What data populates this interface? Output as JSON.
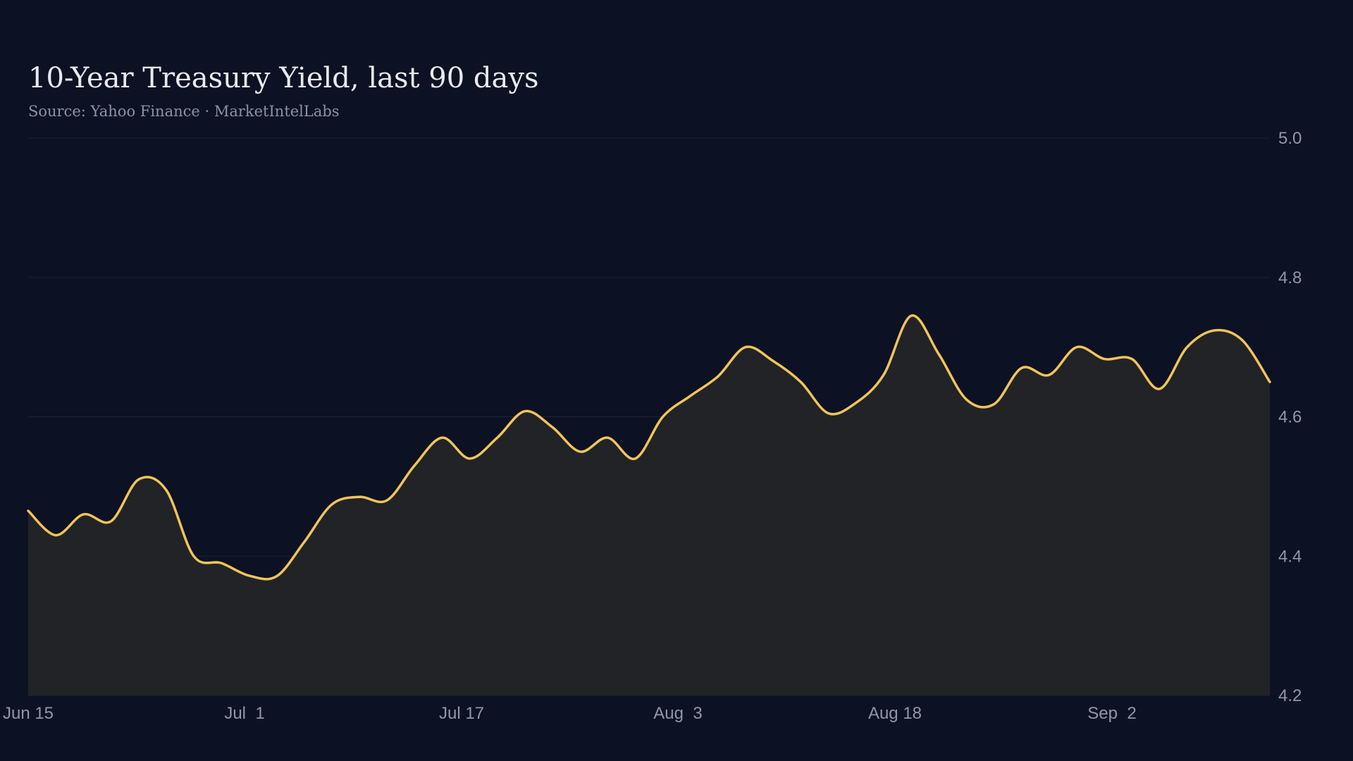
{
  "chart_data": {
    "type": "area",
    "title": "10-Year Treasury Yield, last 90 days",
    "subtitle": "Source: Yahoo Finance · MarketIntelLabs",
    "xlabel": "",
    "ylabel": "",
    "ylim": [
      4.2,
      5.0
    ],
    "yticks": [
      "4.2",
      "4.4",
      "4.6",
      "4.8",
      "5.0"
    ],
    "xticks": [
      "Jun 15",
      "Jul  1",
      "Jul 17",
      "Aug  3",
      "Aug 18",
      "Sep  2"
    ],
    "y_axis_side": "right",
    "grid": "horizontal",
    "legend": "none",
    "colors": {
      "background": "#0c1223",
      "line": "#f2c45a",
      "area": "#212327",
      "grid": "#1c2333",
      "text": "#8f97a8",
      "title": "#e8eaf0"
    },
    "x": [
      "Jun 15",
      "Jun 17",
      "Jun 19",
      "Jun 21",
      "Jun 23",
      "Jun 25",
      "Jun 27",
      "Jun 29",
      "Jul 1",
      "Jul 3",
      "Jul 5",
      "Jul 7",
      "Jul 9",
      "Jul 11",
      "Jul 13",
      "Jul 15",
      "Jul 17",
      "Jul 19",
      "Jul 21",
      "Jul 23",
      "Jul 25",
      "Jul 27",
      "Jul 29",
      "Jul 31",
      "Aug 2",
      "Aug 4",
      "Aug 6",
      "Aug 8",
      "Aug 10",
      "Aug 12",
      "Aug 14",
      "Aug 16",
      "Aug 18",
      "Aug 20",
      "Aug 22",
      "Aug 24",
      "Aug 26",
      "Aug 28",
      "Aug 30",
      "Sep 1",
      "Sep 3",
      "Sep 5",
      "Sep 7",
      "Sep 9",
      "Sep 11",
      "Sep 13"
    ],
    "series": [
      {
        "values": [
          4.465,
          4.43,
          4.46,
          4.45,
          4.51,
          4.495,
          4.4,
          4.39,
          4.372,
          4.371,
          4.42,
          4.474,
          4.485,
          4.48,
          4.53,
          4.57,
          4.54,
          4.57,
          4.608,
          4.585,
          4.55,
          4.57,
          4.54,
          4.6,
          4.63,
          4.658,
          4.7,
          4.68,
          4.65,
          4.605,
          4.62,
          4.66,
          4.745,
          4.69,
          4.625,
          4.618,
          4.67,
          4.66,
          4.7,
          4.683,
          4.683,
          4.64,
          4.7,
          4.724,
          4.71,
          4.65
        ]
      }
    ]
  }
}
